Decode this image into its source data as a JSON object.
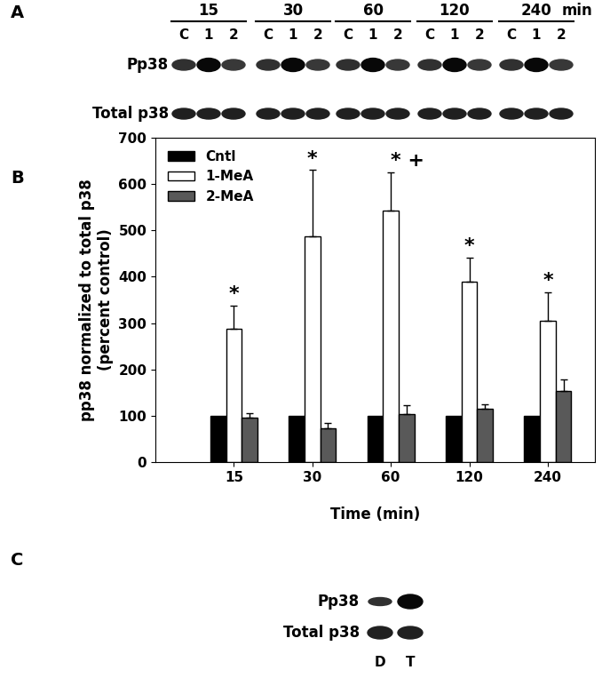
{
  "panel_labels": [
    "A",
    "B",
    "C"
  ],
  "blot_A": {
    "time_points": [
      "15",
      "30",
      "60",
      "120",
      "240"
    ],
    "time_unit": "min",
    "lanes": [
      "C",
      "1",
      "2"
    ],
    "rows": [
      "Pp38",
      "Total p38"
    ]
  },
  "blot_C": {
    "lanes": [
      "D",
      "T"
    ],
    "rows": [
      "Pp38",
      "Total p38"
    ]
  },
  "chart_data": {
    "type": "bar",
    "categories": [
      "15",
      "30",
      "60",
      "120",
      "240"
    ],
    "xlabel": "Time (min)",
    "ylabel": "pp38 normalized to total p38\n(percent control)",
    "ylim": [
      0,
      700
    ],
    "yticks": [
      0,
      100,
      200,
      300,
      400,
      500,
      600,
      700
    ],
    "legend": "upper left",
    "series": [
      {
        "name": "Cntl",
        "color": "#000000",
        "values": [
          100,
          100,
          100,
          100,
          100
        ]
      },
      {
        "name": "1-MeA",
        "color": "#ffffff",
        "values": [
          288,
          487,
          543,
          390,
          305
        ],
        "errors": [
          50,
          143,
          82,
          52,
          62
        ]
      },
      {
        "name": "2-MeA",
        "color": "#595959",
        "values": [
          95,
          73,
          103,
          115,
          153
        ],
        "errors": [
          10,
          12,
          20,
          10,
          25
        ]
      }
    ],
    "annotations": [
      {
        "category": "15",
        "series": "1-MeA",
        "text": "*"
      },
      {
        "category": "30",
        "series": "1-MeA",
        "text": "*"
      },
      {
        "category": "60",
        "series": "1-MeA",
        "text": "* +"
      },
      {
        "category": "120",
        "series": "1-MeA",
        "text": "*"
      },
      {
        "category": "240",
        "series": "1-MeA",
        "text": "*"
      }
    ]
  }
}
